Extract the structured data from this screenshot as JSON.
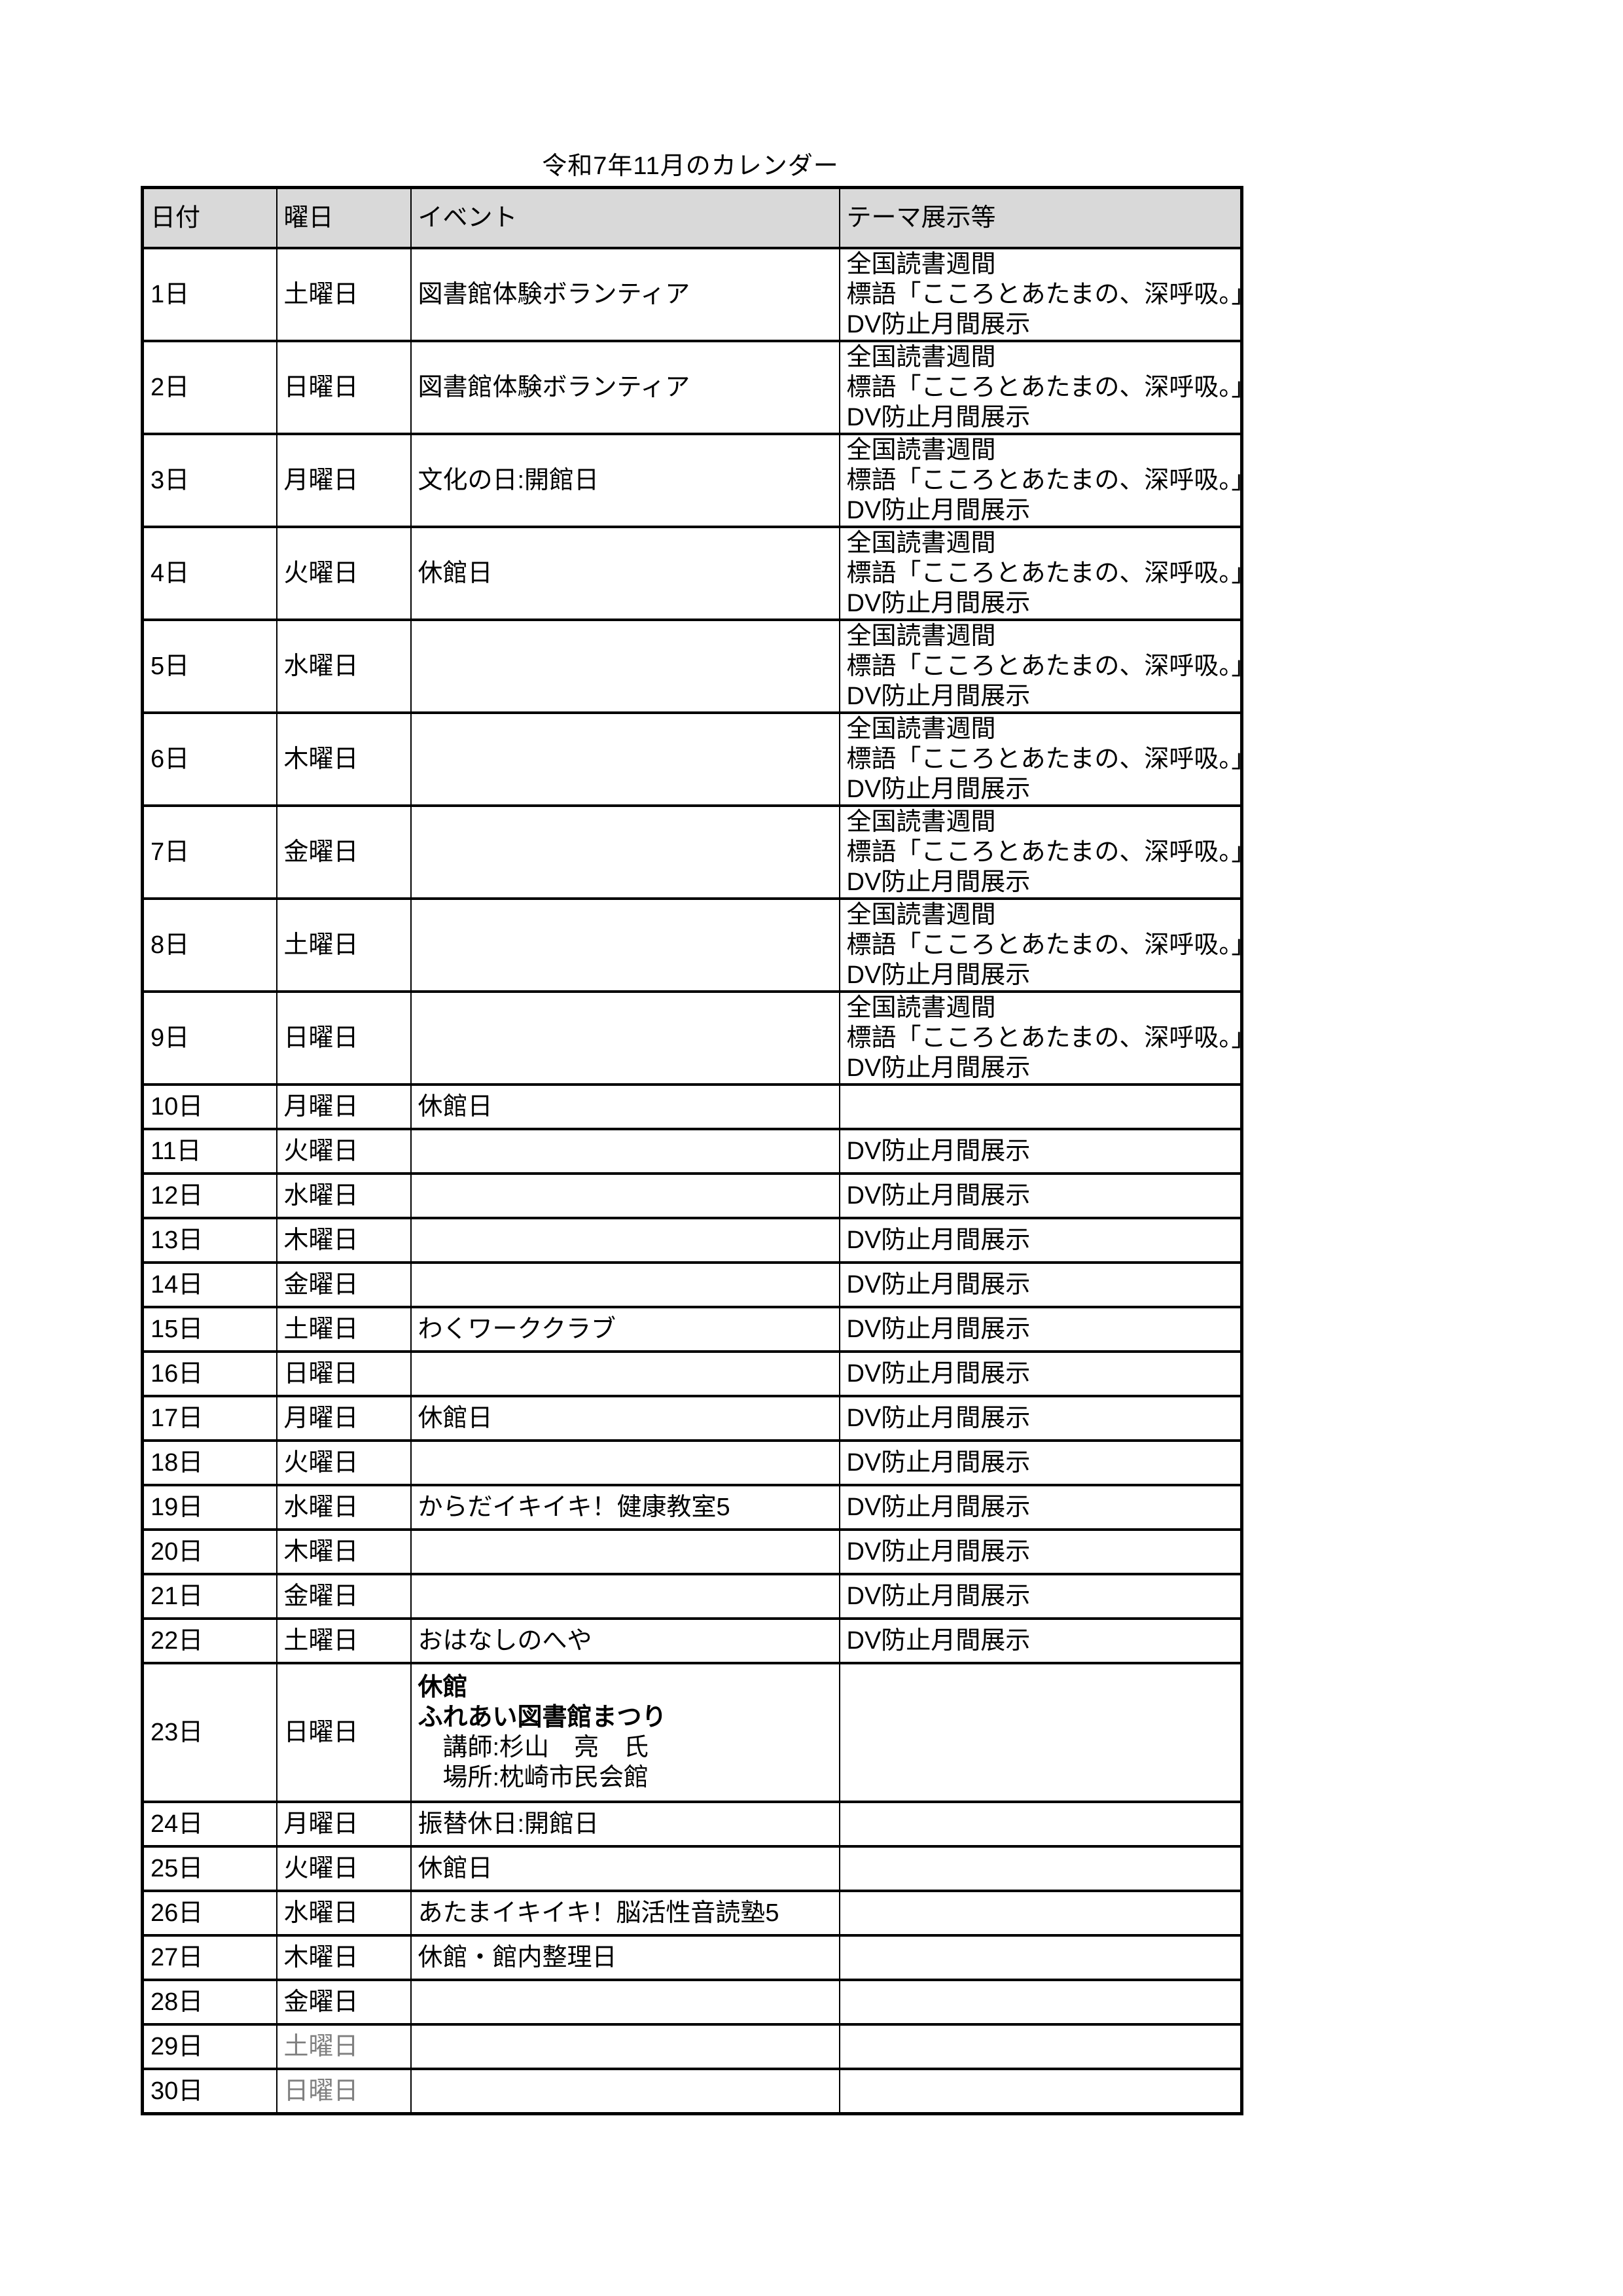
{
  "title": "令和7年11月のカレンダー",
  "colors": {
    "header_bg": "#d9d9d9",
    "grid": "#000000",
    "text": "#000000",
    "muted_day_text": "#7f7f7f"
  },
  "table": {
    "headers": [
      "日付",
      "曜日",
      "イベント",
      "テーマ展示等"
    ],
    "rows": [
      {
        "date": "1日",
        "day": "土曜日",
        "day_muted": false,
        "size": "l",
        "event_lines": [
          {
            "text": "図書館体験ボランティア",
            "bold": false
          }
        ],
        "theme_lines": [
          "全国読書週間",
          "標語「こころとあたまの、深呼吸。」",
          "DV防止月間展示"
        ]
      },
      {
        "date": "2日",
        "day": "日曜日",
        "day_muted": false,
        "size": "l",
        "event_lines": [
          {
            "text": "図書館体験ボランティア",
            "bold": false
          }
        ],
        "theme_lines": [
          "全国読書週間",
          "標語「こころとあたまの、深呼吸。」",
          "DV防止月間展示"
        ]
      },
      {
        "date": "3日",
        "day": "月曜日",
        "day_muted": false,
        "size": "l",
        "event_lines": [
          {
            "text": "文化の日:開館日",
            "bold": false
          }
        ],
        "theme_lines": [
          "全国読書週間",
          "標語「こころとあたまの、深呼吸。」",
          "DV防止月間展示"
        ]
      },
      {
        "date": "4日",
        "day": "火曜日",
        "day_muted": false,
        "size": "l",
        "event_lines": [
          {
            "text": "休館日",
            "bold": false
          }
        ],
        "theme_lines": [
          "全国読書週間",
          "標語「こころとあたまの、深呼吸。」",
          "DV防止月間展示"
        ]
      },
      {
        "date": "5日",
        "day": "水曜日",
        "day_muted": false,
        "size": "l",
        "event_lines": [],
        "theme_lines": [
          "全国読書週間",
          "標語「こころとあたまの、深呼吸。」",
          "DV防止月間展示"
        ]
      },
      {
        "date": "6日",
        "day": "木曜日",
        "day_muted": false,
        "size": "l",
        "event_lines": [],
        "theme_lines": [
          "全国読書週間",
          "標語「こころとあたまの、深呼吸。」",
          "DV防止月間展示"
        ]
      },
      {
        "date": "7日",
        "day": "金曜日",
        "day_muted": false,
        "size": "l",
        "event_lines": [],
        "theme_lines": [
          "全国読書週間",
          "標語「こころとあたまの、深呼吸。」",
          "DV防止月間展示"
        ]
      },
      {
        "date": "8日",
        "day": "土曜日",
        "day_muted": false,
        "size": "l",
        "event_lines": [],
        "theme_lines": [
          "全国読書週間",
          "標語「こころとあたまの、深呼吸。」",
          "DV防止月間展示"
        ]
      },
      {
        "date": "9日",
        "day": "日曜日",
        "day_muted": false,
        "size": "l",
        "event_lines": [],
        "theme_lines": [
          "全国読書週間",
          "標語「こころとあたまの、深呼吸。」",
          "DV防止月間展示"
        ]
      },
      {
        "date": "10日",
        "day": "月曜日",
        "day_muted": false,
        "size": "s",
        "event_lines": [
          {
            "text": "休館日",
            "bold": false
          }
        ],
        "theme_lines": []
      },
      {
        "date": "11日",
        "day": "火曜日",
        "day_muted": false,
        "size": "s",
        "event_lines": [],
        "theme_lines": [
          "DV防止月間展示"
        ]
      },
      {
        "date": "12日",
        "day": "水曜日",
        "day_muted": false,
        "size": "s",
        "event_lines": [],
        "theme_lines": [
          "DV防止月間展示"
        ]
      },
      {
        "date": "13日",
        "day": "木曜日",
        "day_muted": false,
        "size": "s",
        "event_lines": [],
        "theme_lines": [
          "DV防止月間展示"
        ]
      },
      {
        "date": "14日",
        "day": "金曜日",
        "day_muted": false,
        "size": "s",
        "event_lines": [],
        "theme_lines": [
          "DV防止月間展示"
        ]
      },
      {
        "date": "15日",
        "day": "土曜日",
        "day_muted": false,
        "size": "s",
        "event_lines": [
          {
            "text": "わくワーククラブ",
            "bold": false
          }
        ],
        "theme_lines": [
          "DV防止月間展示"
        ]
      },
      {
        "date": "16日",
        "day": "日曜日",
        "day_muted": false,
        "size": "s",
        "event_lines": [],
        "theme_lines": [
          "DV防止月間展示"
        ]
      },
      {
        "date": "17日",
        "day": "月曜日",
        "day_muted": false,
        "size": "s",
        "event_lines": [
          {
            "text": "休館日",
            "bold": false
          }
        ],
        "theme_lines": [
          "DV防止月間展示"
        ]
      },
      {
        "date": "18日",
        "day": "火曜日",
        "day_muted": false,
        "size": "s",
        "event_lines": [],
        "theme_lines": [
          "DV防止月間展示"
        ]
      },
      {
        "date": "19日",
        "day": "水曜日",
        "day_muted": false,
        "size": "s",
        "event_lines": [
          {
            "text": "からだイキイキ！健康教室5",
            "bold": false
          }
        ],
        "theme_lines": [
          "DV防止月間展示"
        ]
      },
      {
        "date": "20日",
        "day": "木曜日",
        "day_muted": false,
        "size": "s",
        "event_lines": [],
        "theme_lines": [
          "DV防止月間展示"
        ]
      },
      {
        "date": "21日",
        "day": "金曜日",
        "day_muted": false,
        "size": "s",
        "event_lines": [],
        "theme_lines": [
          "DV防止月間展示"
        ]
      },
      {
        "date": "22日",
        "day": "土曜日",
        "day_muted": false,
        "size": "s",
        "event_lines": [
          {
            "text": "おはなしのへや",
            "bold": false
          }
        ],
        "theme_lines": [
          "DV防止月間展示"
        ]
      },
      {
        "date": "23日",
        "day": "日曜日",
        "day_muted": false,
        "size": "xl",
        "event_lines": [
          {
            "text": "休館",
            "bold": true
          },
          {
            "text": "ふれあい図書館まつり",
            "bold": true
          },
          {
            "text": "　講師:杉山　亮　氏",
            "bold": false
          },
          {
            "text": "　場所:枕崎市民会館",
            "bold": false
          }
        ],
        "theme_lines": []
      },
      {
        "date": "24日",
        "day": "月曜日",
        "day_muted": false,
        "size": "s",
        "event_lines": [
          {
            "text": "振替休日:開館日",
            "bold": false
          }
        ],
        "theme_lines": []
      },
      {
        "date": "25日",
        "day": "火曜日",
        "day_muted": false,
        "size": "s",
        "event_lines": [
          {
            "text": "休館日",
            "bold": false
          }
        ],
        "theme_lines": []
      },
      {
        "date": "26日",
        "day": "水曜日",
        "day_muted": false,
        "size": "s",
        "event_lines": [
          {
            "text": "あたまイキイキ！脳活性音読塾5",
            "bold": false
          }
        ],
        "theme_lines": []
      },
      {
        "date": "27日",
        "day": "木曜日",
        "day_muted": false,
        "size": "s",
        "event_lines": [
          {
            "text": "休館・館内整理日",
            "bold": false
          }
        ],
        "theme_lines": []
      },
      {
        "date": "28日",
        "day": "金曜日",
        "day_muted": false,
        "size": "s",
        "event_lines": [],
        "theme_lines": []
      },
      {
        "date": "29日",
        "day": "土曜日",
        "day_muted": true,
        "size": "s",
        "event_lines": [],
        "theme_lines": []
      },
      {
        "date": "30日",
        "day": "日曜日",
        "day_muted": true,
        "size": "s",
        "event_lines": [],
        "theme_lines": []
      }
    ]
  }
}
